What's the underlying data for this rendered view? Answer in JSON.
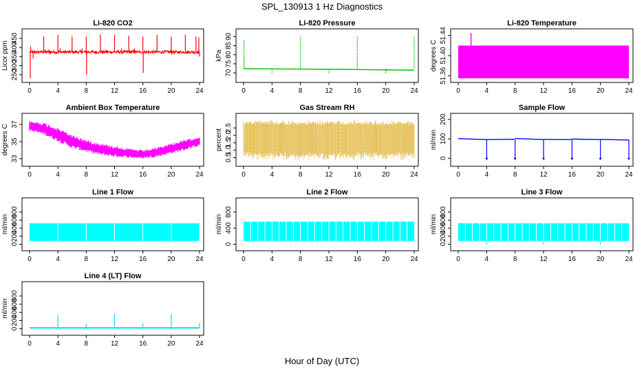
{
  "title": "SPL_130913  1 Hz Diagnostics",
  "x_axis_label": "Hour of Day (UTC)",
  "chart_data": [
    {
      "type": "line",
      "title": "Li-820 CO2",
      "ylabel": "Licor ppm",
      "color": "#ff0000",
      "xlim": [
        0,
        24
      ],
      "x_ticks": [
        0,
        4,
        8,
        12,
        16,
        20,
        24
      ],
      "ylim": [
        230,
        480
      ],
      "y_ticks": [
        250,
        300,
        350,
        400,
        450
      ],
      "series": [
        {
          "baseline": 375,
          "noise": 8,
          "spikes": [
            {
              "x": 0.1,
              "y": 232
            },
            {
              "x": 0.15,
              "y": 405
            },
            {
              "x": 0.5,
              "y": 340
            },
            {
              "x": 2.0,
              "y": 460
            },
            {
              "x": 2.7,
              "y": 390
            },
            {
              "x": 4.0,
              "y": 470
            },
            {
              "x": 4.3,
              "y": 395
            },
            {
              "x": 6.0,
              "y": 460
            },
            {
              "x": 7.4,
              "y": 395
            },
            {
              "x": 8.0,
              "y": 460
            },
            {
              "x": 8.05,
              "y": 250
            },
            {
              "x": 10.0,
              "y": 470
            },
            {
              "x": 12.0,
              "y": 470
            },
            {
              "x": 13.0,
              "y": 395
            },
            {
              "x": 14.0,
              "y": 465
            },
            {
              "x": 14.8,
              "y": 395
            },
            {
              "x": 16.0,
              "y": 460
            },
            {
              "x": 16.05,
              "y": 260
            },
            {
              "x": 18.0,
              "y": 470
            },
            {
              "x": 20.0,
              "y": 460
            },
            {
              "x": 22.0,
              "y": 470
            },
            {
              "x": 23.5,
              "y": 460
            },
            {
              "x": 23.9,
              "y": 455
            },
            {
              "x": 24.0,
              "y": 350
            }
          ]
        }
      ]
    },
    {
      "type": "line",
      "title": "Li-820 Pressure",
      "ylabel": "kPa",
      "color": "#00c000",
      "xlim": [
        0,
        24
      ],
      "x_ticks": [
        0,
        4,
        8,
        12,
        16,
        20,
        24
      ],
      "ylim": [
        67,
        92
      ],
      "y_ticks": [
        70,
        75,
        80,
        85,
        90
      ],
      "series": [
        {
          "segments": [
            {
              "x0": 0.1,
              "x1": 8,
              "y0": 72.3,
              "y1": 72.1
            },
            {
              "x0": 8,
              "x1": 16,
              "y0": 72.1,
              "y1": 71.9
            },
            {
              "x0": 16,
              "x1": 24,
              "y0": 71.8,
              "y1": 71.5
            }
          ],
          "spikes": [
            {
              "x": 0.05,
              "y": 88
            },
            {
              "x": 0.08,
              "y": 80
            },
            {
              "x": 4.0,
              "y": 69.5
            },
            {
              "x": 8.0,
              "y": 90
            },
            {
              "x": 12.0,
              "y": 69.5
            },
            {
              "x": 16.0,
              "y": 90
            },
            {
              "x": 20.0,
              "y": 69.5
            },
            {
              "x": 24.0,
              "y": 90
            }
          ]
        }
      ]
    },
    {
      "type": "area",
      "title": "Li-820 Temperature",
      "ylabel": "degrees C",
      "color": "#ff00ff",
      "xlim": [
        0,
        24
      ],
      "x_ticks": [
        0,
        4,
        8,
        12,
        16,
        20,
        24
      ],
      "ylim": [
        51.355,
        51.445
      ],
      "y_ticks": [
        51.36,
        51.4,
        51.44
      ],
      "series": [
        {
          "x_range": [
            0,
            24
          ],
          "y_low": 51.355,
          "y_high": 51.42,
          "spikes": [
            {
              "x": 1.8,
              "y": 51.445
            }
          ]
        }
      ]
    },
    {
      "type": "line",
      "title": "Ambient Box Temperature",
      "ylabel": "degrees C",
      "color": "#ff00ff",
      "xlim": [
        0,
        24
      ],
      "x_ticks": [
        0,
        4,
        8,
        12,
        16,
        20,
        24
      ],
      "ylim": [
        32.6,
        37.8
      ],
      "y_ticks": [
        33,
        35,
        37
      ],
      "series": [
        {
          "envelope": [
            {
              "x": 0,
              "lo": 36.2,
              "hi": 37.4
            },
            {
              "x": 2,
              "lo": 35.8,
              "hi": 37.2
            },
            {
              "x": 4,
              "lo": 35.0,
              "hi": 36.6
            },
            {
              "x": 6,
              "lo": 34.2,
              "hi": 35.8
            },
            {
              "x": 8,
              "lo": 33.8,
              "hi": 35.2
            },
            {
              "x": 10,
              "lo": 33.4,
              "hi": 34.8
            },
            {
              "x": 12,
              "lo": 33.2,
              "hi": 34.5
            },
            {
              "x": 14,
              "lo": 33.1,
              "hi": 34.2
            },
            {
              "x": 16,
              "lo": 33.0,
              "hi": 34.0
            },
            {
              "x": 18,
              "lo": 33.2,
              "hi": 34.3
            },
            {
              "x": 20,
              "lo": 33.6,
              "hi": 34.8
            },
            {
              "x": 22,
              "lo": 34.0,
              "hi": 35.2
            },
            {
              "x": 24,
              "lo": 34.5,
              "hi": 35.6
            }
          ]
        }
      ]
    },
    {
      "type": "line",
      "title": "Gas Stream RH",
      "ylabel": "percent",
      "color": "#d6a000",
      "xlim": [
        0,
        24
      ],
      "x_ticks": [
        0,
        4,
        8,
        12,
        16,
        20,
        24
      ],
      "ylim": [
        0.2,
        3.2
      ],
      "y_ticks": [
        0.5,
        1.0,
        1.5,
        2.0,
        2.5
      ],
      "series": [
        {
          "band_lo": 0.35,
          "band_hi": 3.0,
          "core_lo": 0.9,
          "core_hi": 2.7
        }
      ]
    },
    {
      "type": "line",
      "title": "Sample Flow",
      "ylabel": "ml/min",
      "color": "#0000ff",
      "xlim": [
        0,
        24
      ],
      "x_ticks": [
        0,
        4,
        8,
        12,
        16,
        20,
        24
      ],
      "ylim": [
        -20,
        210
      ],
      "y_ticks": [
        0,
        100,
        200
      ],
      "series": [
        {
          "segments": [
            {
              "x0": 0,
              "x1": 4,
              "y0": 101,
              "y1": 96
            },
            {
              "x0": 4,
              "x1": 8,
              "y0": 96,
              "y1": 98
            },
            {
              "x0": 8,
              "x1": 12,
              "y0": 102,
              "y1": 96
            },
            {
              "x0": 12,
              "x1": 16,
              "y0": 97,
              "y1": 96
            },
            {
              "x0": 16,
              "x1": 20,
              "y0": 99,
              "y1": 96
            },
            {
              "x0": 20,
              "x1": 24,
              "y0": 97,
              "y1": 94
            }
          ],
          "dips": [
            4,
            8,
            12,
            16,
            20,
            24
          ],
          "dip_value": -2
        }
      ]
    },
    {
      "type": "area",
      "title": "Line 1 Flow",
      "ylabel": "ml/min",
      "color": "#00ffff",
      "xlim": [
        0,
        24
      ],
      "x_ticks": [
        0,
        4,
        8,
        12,
        16,
        20,
        24
      ],
      "ylim": [
        -60,
        1050
      ],
      "y_ticks": [
        0,
        200,
        400,
        600,
        800
      ],
      "series": [
        {
          "x_range": [
            0,
            24
          ],
          "y_low": 80,
          "y_high": 520,
          "gaps": [
            4,
            8,
            12,
            16,
            20,
            24
          ]
        }
      ]
    },
    {
      "type": "area",
      "title": "Line 2 Flow",
      "ylabel": "ml/min",
      "color": "#00ffff",
      "xlim": [
        0,
        24
      ],
      "x_ticks": [
        0,
        4,
        8,
        12,
        16,
        20,
        24
      ],
      "ylim": [
        -60,
        1050
      ],
      "y_ticks": [
        0,
        400,
        800
      ],
      "series": [
        {
          "x_range": [
            0,
            24
          ],
          "y_low": 80,
          "y_high": 560,
          "gaps": [
            1,
            2,
            3,
            4,
            5,
            6,
            7,
            8,
            9,
            10,
            11,
            12,
            13,
            14,
            15,
            16,
            17,
            18,
            19,
            20,
            21,
            22,
            23
          ]
        }
      ]
    },
    {
      "type": "area",
      "title": "Line 3 Flow",
      "ylabel": "ml/min",
      "color": "#00ffff",
      "xlim": [
        0,
        24
      ],
      "x_ticks": [
        0,
        4,
        8,
        12,
        16,
        20,
        24
      ],
      "ylim": [
        -60,
        1050
      ],
      "y_ticks": [
        0,
        200,
        400,
        600,
        800
      ],
      "series": [
        {
          "x_range": [
            0,
            24
          ],
          "y_low": 80,
          "y_high": 520,
          "gaps": [
            1,
            2,
            3,
            4,
            5,
            6,
            7,
            8,
            9,
            10,
            11,
            12,
            13,
            14,
            15,
            16,
            17,
            18,
            19,
            20,
            21,
            22,
            23
          ],
          "dips": [
            {
              "x": 4,
              "y": -20
            },
            {
              "x": 12,
              "y": -20
            },
            {
              "x": 20,
              "y": -20
            }
          ]
        }
      ]
    },
    {
      "type": "line",
      "title": "Line 4 (LT) Flow",
      "ylabel": "ml/min",
      "color": "#00e0e0",
      "xlim": [
        0,
        24
      ],
      "x_ticks": [
        0,
        4,
        8,
        12,
        16,
        20,
        24
      ],
      "ylim": [
        -60,
        1050
      ],
      "y_ticks": [
        0,
        200,
        400,
        600,
        800
      ],
      "series": [
        {
          "baseline": 20,
          "spikes": [
            {
              "x": 4,
              "y": 330
            },
            {
              "x": 8,
              "y": 130
            },
            {
              "x": 12,
              "y": 370
            },
            {
              "x": 16,
              "y": 130
            },
            {
              "x": 20,
              "y": 360
            },
            {
              "x": 24,
              "y": 140
            }
          ]
        }
      ]
    }
  ]
}
